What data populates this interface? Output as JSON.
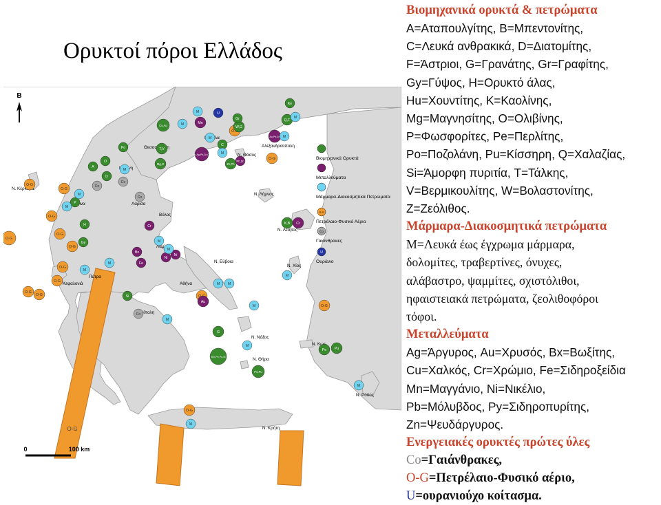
{
  "title": "Ορυκτοί πόροι Ελλάδος",
  "colors": {
    "industrial": "#3a8a2e",
    "metals": "#7a1f6e",
    "marbles": "#6fd3ef",
    "oil_gas": "#f09a2e",
    "coal": "#a8a8a8",
    "uranium": "#2436a6",
    "section_heading": "#c8442c",
    "coal_code": "#8a8a8a",
    "oilgas_code": "#c8442c",
    "uranium_code": "#2436a6",
    "land": "#d9d9d9",
    "sea": "#ffffff"
  },
  "map": {
    "north_label": "B",
    "scale": {
      "start": "0",
      "end": "100 km"
    },
    "legend": [
      {
        "label": "Βιομηχανικά Ορυκτά",
        "color_key": "industrial",
        "code": ""
      },
      {
        "label": "Μεταλλεύματα",
        "color_key": "metals",
        "code": ""
      },
      {
        "label": "Μάρμαρα-Διακοσμητικά Πετρώματα",
        "color_key": "marbles",
        "code": ""
      },
      {
        "label": "Πετρέλαιο-Φυσικό Αέριο",
        "color_key": "oil_gas",
        "code": "O-G"
      },
      {
        "label": "Γαιάνθρακες",
        "color_key": "coal",
        "code": "Co"
      },
      {
        "label": "Ουράνιο",
        "color_key": "uranium",
        "code": "U"
      }
    ],
    "place_labels": [
      "Θεσσαλονίκη",
      "Καβάλα",
      "Αλεξανδρούπολη",
      "Ν. Θάσος",
      "Κοζάνη",
      "Ν. Κέρκυρα",
      "Ιωάννινα",
      "Λάρισα",
      "Βόλος",
      "Ν. Λήμνος",
      "Ν. Λέσβος",
      "Λαμία",
      "Ν. Εύβοια",
      "Ν. Χίος",
      "Πάτρα",
      "Ν. Κεφαλονιά",
      "Αθήνα",
      "Τρίπολη",
      "Ν. Νάξος",
      "Ν. Κως",
      "Ν. Θήρα",
      "Ν. Ρόδος",
      "Ν. Κρήτη"
    ],
    "markers": [
      {
        "code": "O-G",
        "type": "oil_gas"
      },
      {
        "code": "O-G",
        "type": "oil_gas"
      },
      {
        "code": "O-G",
        "type": "oil_gas"
      },
      {
        "code": "O-G",
        "type": "oil_gas"
      },
      {
        "code": "O-G",
        "type": "oil_gas"
      },
      {
        "code": "O-G",
        "type": "oil_gas"
      },
      {
        "code": "O-G",
        "type": "oil_gas"
      },
      {
        "code": "O-G",
        "type": "oil_gas"
      },
      {
        "code": "O-G",
        "type": "oil_gas"
      },
      {
        "code": "O-G",
        "type": "oil_gas"
      },
      {
        "code": "O-G",
        "type": "oil_gas"
      },
      {
        "code": "O-G",
        "type": "oil_gas"
      },
      {
        "code": "O-G",
        "type": "oil_gas"
      },
      {
        "code": "O-G",
        "type": "oil_gas"
      },
      {
        "code": "O-G",
        "type": "oil_gas"
      },
      {
        "code": "Q,F",
        "type": "industrial"
      },
      {
        "code": "Cu,Au",
        "type": "industrial"
      },
      {
        "code": "T,V",
        "type": "industrial"
      },
      {
        "code": "Mg,O",
        "type": "industrial"
      },
      {
        "code": "W,G",
        "type": "industrial"
      },
      {
        "code": "Zn,Pb",
        "type": "industrial"
      },
      {
        "code": "Ke",
        "type": "industrial"
      },
      {
        "code": "Po",
        "type": "industrial"
      },
      {
        "code": "Gr",
        "type": "industrial"
      },
      {
        "code": "C",
        "type": "industrial"
      },
      {
        "code": "A",
        "type": "industrial"
      },
      {
        "code": "D",
        "type": "industrial"
      },
      {
        "code": "O",
        "type": "industrial"
      },
      {
        "code": "Gy",
        "type": "industrial"
      },
      {
        "code": "H",
        "type": "industrial"
      },
      {
        "code": "P",
        "type": "industrial"
      },
      {
        "code": "G",
        "type": "industrial"
      },
      {
        "code": "Si",
        "type": "industrial"
      },
      {
        "code": "B,K,Pe,Po,Si",
        "type": "industrial"
      },
      {
        "code": "Po,Pu",
        "type": "industrial"
      },
      {
        "code": "Pe",
        "type": "industrial"
      },
      {
        "code": "Pu",
        "type": "industrial"
      },
      {
        "code": "K,B",
        "type": "industrial"
      },
      {
        "code": "Au,Pb,Zn",
        "type": "metals"
      },
      {
        "code": "Au,Ag,Pb,Zn,Cu",
        "type": "metals"
      },
      {
        "code": "Mn",
        "type": "metals"
      },
      {
        "code": "Cr",
        "type": "metals"
      },
      {
        "code": "Ni",
        "type": "metals"
      },
      {
        "code": "Bx",
        "type": "metals"
      },
      {
        "code": "Fe",
        "type": "metals"
      },
      {
        "code": "Pb,Zn",
        "type": "metals"
      },
      {
        "code": "Au",
        "type": "metals"
      },
      {
        "code": "Cr",
        "type": "metals"
      },
      {
        "code": "Ni",
        "type": "metals"
      },
      {
        "code": "U",
        "type": "uranium"
      },
      {
        "code": "Co",
        "type": "coal"
      },
      {
        "code": "Co",
        "type": "coal"
      },
      {
        "code": "Co",
        "type": "coal"
      },
      {
        "code": "Co",
        "type": "coal"
      },
      {
        "code": "M",
        "type": "marbles"
      },
      {
        "code": "M",
        "type": "marbles"
      },
      {
        "code": "M",
        "type": "marbles"
      },
      {
        "code": "M",
        "type": "marbles"
      },
      {
        "code": "M",
        "type": "marbles"
      },
      {
        "code": "M",
        "type": "marbles"
      },
      {
        "code": "M",
        "type": "marbles"
      },
      {
        "code": "M",
        "type": "marbles"
      },
      {
        "code": "M",
        "type": "marbles"
      },
      {
        "code": "M",
        "type": "marbles"
      },
      {
        "code": "M",
        "type": "marbles"
      },
      {
        "code": "M",
        "type": "marbles"
      },
      {
        "code": "M",
        "type": "marbles"
      },
      {
        "code": "M",
        "type": "marbles"
      },
      {
        "code": "M",
        "type": "marbles"
      },
      {
        "code": "M",
        "type": "marbles"
      },
      {
        "code": "M",
        "type": "marbles"
      },
      {
        "code": "M",
        "type": "marbles"
      },
      {
        "code": "M",
        "type": "marbles"
      },
      {
        "code": "M",
        "type": "marbles"
      },
      {
        "code": "M",
        "type": "marbles"
      }
    ]
  },
  "sections": {
    "industrial": {
      "heading": "Βιομηχανικά ορυκτά & πετρώματα",
      "lines": [
        "A=Αταπουλγίτης, B=Μπεντονίτης,",
        "C=Λευκά ανθρακικά, D=Διατομίτης,",
        "F=Άστριοι, G=Γρανάτης, Gr=Γραφίτης,",
        "Gy=Γύψος, H=Ορυκτό άλας,",
        "Hu=Χουντίτης, K=Καολίνης,",
        "Mg=Μαγνησίτης, O=Ολιβίνης,",
        "P=Φωσφορίτες, Pe=Περλίτης,",
        "Po=Ποζολάνη, Pu=Κίσσηρη, Q=Χαλαζίας,",
        "Si=Άμορφη πυριτία, T=Τάλκης,",
        "V=Βερμικουλίτης, W=Βολαστονίτης,",
        "Z=Ζεόλιθος."
      ]
    },
    "marbles": {
      "heading": "Μάρμαρα-Διακοσμητικά πετρώματα",
      "lines": [
        "M=Λευκά έως έγχρωμα μάρμαρα,",
        "δολομίτες, τραβερτίνες, όνυχες,",
        "αλάβαστρο, ψαμμίτες, σχιστόλιθοι,",
        "ηφαιστειακά πετρώματα, ζεολιθοφόροι",
        "τόφοι."
      ]
    },
    "metals": {
      "heading": "Μεταλλεύματα",
      "lines": [
        "Ag=Άργυρος, Au=Χρυσός, Bx=Βωξίτης,",
        "Cu=Χαλκός, Cr=Χρώμιο, Fe=Σιδηροξείδια",
        "Mn=Μαγγάνιο, Ni=Νικέλιο,",
        "Pb=Μόλυβδος, Py=Σιδηροπυρίτης,",
        "Zn=Ψευδάργυρος."
      ]
    },
    "energy": {
      "heading": "Ενεργειακές ορυκτές πρώτες ύλες",
      "items": [
        {
          "code": "Co",
          "text": "=Γαιάνθρακες,"
        },
        {
          "code": "O-G",
          "text": "=Πετρέλαιο-Φυσικό αέριο,"
        },
        {
          "code": "U",
          "text": "=ουρανιούχο κοίτασμα."
        }
      ]
    }
  }
}
